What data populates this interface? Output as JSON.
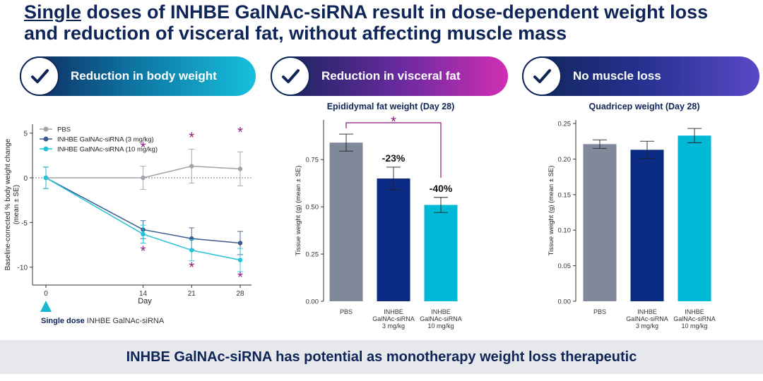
{
  "title": {
    "underlined": "Single",
    "rest_line1": " doses of INHBE GalNAc-siRNA result in dose-dependent weight loss",
    "line2": "and reduction of visceral fat, without affecting muscle mass"
  },
  "banners": [
    {
      "label": "Reduction in body weight"
    },
    {
      "label": "Reduction in visceral fat"
    },
    {
      "label": "No muscle loss"
    }
  ],
  "dose_note": {
    "bold": "Single dose",
    "rest": " INHBE GalNAc-siRNA"
  },
  "footer": "INHBE GalNAc-siRNA has potential as monotherapy weight loss therapeutic",
  "colors": {
    "navy": "#0f2557",
    "pbs_gray": "#7f8999",
    "bar_navy": "#0b2a82",
    "cyan": "#00b9d6",
    "line_gray": "#a0a4aa",
    "line_navy": "#3b5b8c",
    "line_cyan": "#22c3d9",
    "star": "#8b1a7c"
  },
  "chart_data": [
    {
      "type": "line",
      "xlabel": "Day",
      "ylabel": "Baseline-corrected % body weight change",
      "ylabel2": "(mean ± SE)",
      "x": [
        0,
        14,
        21,
        28
      ],
      "xlim": [
        0,
        28
      ],
      "ylim": [
        -12,
        6
      ],
      "yticks": [
        5,
        0,
        -5,
        -10
      ],
      "yticklabels": [
        "5",
        "0",
        "-5",
        "-10"
      ],
      "reference_line": 0,
      "series": [
        {
          "name": "PBS",
          "values": [
            0,
            0,
            1.3,
            1.0
          ],
          "err": [
            1.2,
            1.3,
            1.9,
            1.9
          ]
        },
        {
          "name": "INHBE GalNAc-siRNA (3 mg/kg)",
          "values": [
            0,
            -5.8,
            -6.8,
            -7.3
          ],
          "err": [
            1.2,
            1.0,
            1.2,
            1.3
          ]
        },
        {
          "name": "INHBE GalNAc-siRNA (10 mg/kg)",
          "values": [
            0,
            -6.3,
            -8.1,
            -9.2
          ],
          "err": [
            1.2,
            1.0,
            1.2,
            1.3
          ]
        }
      ],
      "significance": [
        {
          "x": 14,
          "y": 3.5,
          "text": "*"
        },
        {
          "x": 14,
          "y": -8.1,
          "text": "*"
        },
        {
          "x": 21,
          "y": 4.6,
          "text": "*"
        },
        {
          "x": 21,
          "y": -9.9,
          "text": "*"
        },
        {
          "x": 28,
          "y": 5.2,
          "text": "*"
        },
        {
          "x": 28,
          "y": -11.0,
          "text": "*"
        }
      ]
    },
    {
      "type": "bar",
      "title": "Epididymal fat weight (Day 28)",
      "ylabel": "Tissue weight (g) (mean ± SE)",
      "categories": [
        "PBS",
        "INHBE GalNAc-siRNA 3 mg/kg",
        "INHBE GalNAc-siRNA 10 mg/kg"
      ],
      "category_lines": [
        [
          "PBS"
        ],
        [
          "INHBE",
          "GalNAc-siRNA",
          "3 mg/kg"
        ],
        [
          "INHBE",
          "GalNAc-siRNA",
          "10 mg/kg"
        ]
      ],
      "values": [
        0.84,
        0.65,
        0.51
      ],
      "err": [
        0.045,
        0.06,
        0.04
      ],
      "labels": [
        "",
        "-23%",
        "-40%"
      ],
      "ylim": [
        0,
        0.96
      ],
      "yticks": [
        0,
        0.25,
        0.5,
        0.75
      ],
      "yticklabels": [
        "0.00",
        "0.25",
        "0.50",
        "0.75"
      ],
      "bracket": {
        "from": 0,
        "to": 2,
        "text": "*"
      }
    },
    {
      "type": "bar",
      "title": "Quadricep weight (Day 28)",
      "ylabel": "Tissue weight (g) (mean ± SE)",
      "categories": [
        "PBS",
        "INHBE GalNAc-siRNA 3 mg/kg",
        "INHBE GalNAc-siRNA 10 mg/kg"
      ],
      "category_lines": [
        [
          "PBS"
        ],
        [
          "INHBE",
          "GalNAc-siRNA",
          "3 mg/kg"
        ],
        [
          "INHBE",
          "GalNAc-siRNA",
          "10 mg/kg"
        ]
      ],
      "values": [
        0.221,
        0.213,
        0.233
      ],
      "err": [
        0.006,
        0.012,
        0.01
      ],
      "labels": [
        "",
        "",
        ""
      ],
      "ylim": [
        0,
        0.255
      ],
      "yticks": [
        0,
        0.05,
        0.1,
        0.15,
        0.2,
        0.25
      ],
      "yticklabels": [
        "0.00",
        "0.05",
        "0.10",
        "0.15",
        "0.20",
        "0.25"
      ]
    }
  ]
}
